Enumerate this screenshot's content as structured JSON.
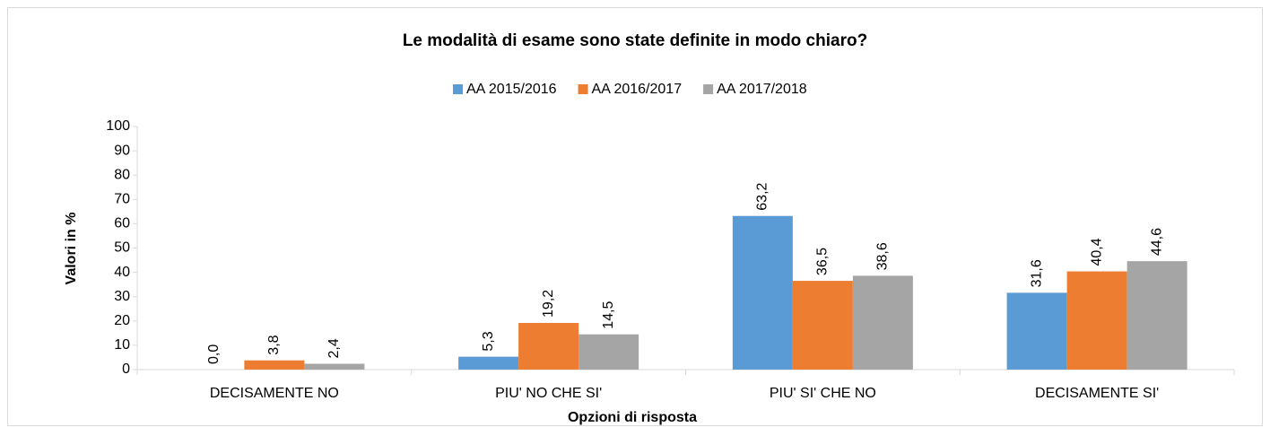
{
  "chart_data": {
    "type": "bar",
    "title": "Le modalità di esame sono state definite in modo chiaro?",
    "xlabel": "Opzioni di risposta",
    "ylabel": "Valori in %",
    "categories": [
      "DECISAMENTE NO",
      "PIU' NO CHE SI'",
      "PIU' SI' CHE NO",
      "DECISAMENTE SI'"
    ],
    "series": [
      {
        "name": "AA 2015/2016",
        "color": "#5b9bd5",
        "values": [
          0.0,
          5.3,
          63.2,
          31.6
        ],
        "value_labels": [
          "0,0",
          "5,3",
          "63,2",
          "31,6"
        ]
      },
      {
        "name": "AA 2016/2017",
        "color": "#ed7d31",
        "values": [
          3.8,
          19.2,
          36.5,
          40.4
        ],
        "value_labels": [
          "3,8",
          "19,2",
          "36,5",
          "40,4"
        ]
      },
      {
        "name": "AA 2017/2018",
        "color": "#a5a5a5",
        "values": [
          2.4,
          14.5,
          38.6,
          44.6
        ],
        "value_labels": [
          "2,4",
          "14,5",
          "38,6",
          "44,6"
        ]
      }
    ],
    "ylim": [
      0,
      100
    ],
    "yticks": [
      0,
      10,
      20,
      30,
      40,
      50,
      60,
      70,
      80,
      90,
      100
    ],
    "grid": false,
    "legend": "top"
  }
}
